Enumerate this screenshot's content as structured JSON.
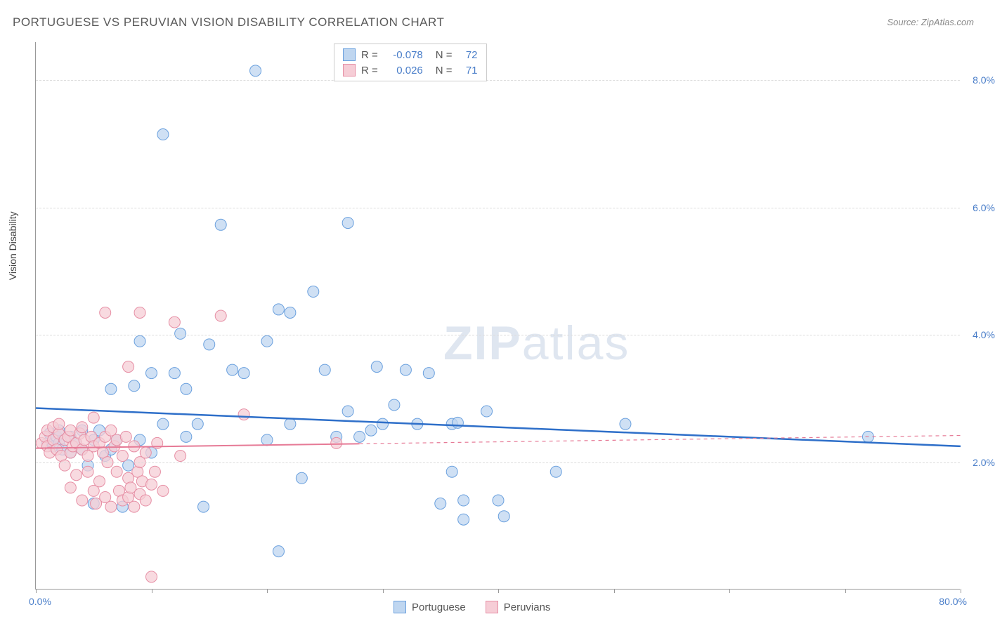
{
  "title": "PORTUGUESE VS PERUVIAN VISION DISABILITY CORRELATION CHART",
  "source": "Source: ZipAtlas.com",
  "y_axis_label": "Vision Disability",
  "watermark_zip": "ZIP",
  "watermark_atlas": "atlas",
  "chart": {
    "type": "scatter",
    "background_color": "#ffffff",
    "grid_color": "#dcdcdc",
    "axis_color": "#999999",
    "text_color": "#555555",
    "value_color": "#4a7ec9",
    "xlim": [
      0,
      80
    ],
    "ylim": [
      0,
      8.6
    ],
    "x_ticks": [
      0,
      10,
      20,
      30,
      40,
      50,
      60,
      70,
      80
    ],
    "x_labels": {
      "min": "0.0%",
      "max": "80.0%"
    },
    "y_grid": [
      {
        "value": 2.0,
        "label": "2.0%"
      },
      {
        "value": 4.0,
        "label": "4.0%"
      },
      {
        "value": 6.0,
        "label": "6.0%"
      },
      {
        "value": 8.0,
        "label": "8.0%"
      }
    ],
    "series": [
      {
        "name": "Portuguese",
        "R": "-0.078",
        "N": "72",
        "marker_fill": "#bfd6f0",
        "marker_stroke": "#6aa0de",
        "marker_radius": 8,
        "line_color": "#2e6fc9",
        "line_width": 2.5,
        "regression": {
          "x1": 0,
          "y1": 2.85,
          "x2": 80,
          "y2": 2.25,
          "solid_until": 80
        },
        "points": [
          [
            1,
            2.3
          ],
          [
            1.2,
            2.45
          ],
          [
            1.5,
            2.25
          ],
          [
            1.8,
            2.4
          ],
          [
            2,
            2.3
          ],
          [
            2,
            2.5
          ],
          [
            2.3,
            2.2
          ],
          [
            3,
            2.15
          ],
          [
            3,
            2.4
          ],
          [
            3.5,
            2.3
          ],
          [
            4,
            2.2
          ],
          [
            4,
            2.5
          ],
          [
            4.5,
            1.95
          ],
          [
            5,
            2.35
          ],
          [
            5,
            1.35
          ],
          [
            5.5,
            2.5
          ],
          [
            6,
            2.1
          ],
          [
            6.5,
            3.15
          ],
          [
            6.5,
            2.2
          ],
          [
            7,
            2.35
          ],
          [
            7.5,
            1.3
          ],
          [
            8,
            1.95
          ],
          [
            8.5,
            3.2
          ],
          [
            9,
            3.9
          ],
          [
            9,
            2.35
          ],
          [
            10,
            3.4
          ],
          [
            10,
            2.15
          ],
          [
            11,
            7.15
          ],
          [
            11,
            2.6
          ],
          [
            12,
            3.4
          ],
          [
            12.5,
            4.02
          ],
          [
            13,
            3.15
          ],
          [
            13,
            2.4
          ],
          [
            14,
            2.6
          ],
          [
            14.5,
            1.3
          ],
          [
            15,
            3.85
          ],
          [
            16,
            5.73
          ],
          [
            17,
            3.45
          ],
          [
            18,
            3.4
          ],
          [
            19,
            8.15
          ],
          [
            20,
            3.9
          ],
          [
            20,
            2.35
          ],
          [
            21,
            4.4
          ],
          [
            21,
            0.6
          ],
          [
            22,
            4.35
          ],
          [
            22,
            2.6
          ],
          [
            23,
            1.75
          ],
          [
            24,
            4.68
          ],
          [
            25,
            3.45
          ],
          [
            26,
            2.4
          ],
          [
            27,
            2.8
          ],
          [
            27,
            5.76
          ],
          [
            28,
            2.4
          ],
          [
            29,
            2.5
          ],
          [
            29.5,
            3.5
          ],
          [
            30,
            2.6
          ],
          [
            31,
            2.9
          ],
          [
            32,
            3.45
          ],
          [
            33,
            2.6
          ],
          [
            34,
            3.4
          ],
          [
            35,
            1.35
          ],
          [
            36,
            2.6
          ],
          [
            36,
            1.85
          ],
          [
            36.5,
            2.62
          ],
          [
            37,
            1.1
          ],
          [
            37,
            1.4
          ],
          [
            39,
            2.8
          ],
          [
            40,
            1.4
          ],
          [
            40.5,
            1.15
          ],
          [
            45,
            1.85
          ],
          [
            51,
            2.6
          ],
          [
            72,
            2.4
          ]
        ]
      },
      {
        "name": "Peruvians",
        "R": "0.026",
        "N": "71",
        "marker_fill": "#f6cdd6",
        "marker_stroke": "#e68ea4",
        "marker_radius": 8,
        "line_color": "#e67a96",
        "line_width": 2,
        "regression": {
          "x1": 0,
          "y1": 2.22,
          "x2": 80,
          "y2": 2.42,
          "solid_until": 28
        },
        "points": [
          [
            0.5,
            2.3
          ],
          [
            0.8,
            2.4
          ],
          [
            1,
            2.25
          ],
          [
            1,
            2.5
          ],
          [
            1.2,
            2.15
          ],
          [
            1.5,
            2.35
          ],
          [
            1.5,
            2.55
          ],
          [
            1.8,
            2.2
          ],
          [
            2,
            2.45
          ],
          [
            2,
            2.6
          ],
          [
            2.2,
            2.1
          ],
          [
            2.5,
            2.35
          ],
          [
            2.5,
            1.95
          ],
          [
            2.8,
            2.4
          ],
          [
            3,
            2.15
          ],
          [
            3,
            2.5
          ],
          [
            3,
            1.6
          ],
          [
            3.2,
            2.25
          ],
          [
            3.5,
            2.3
          ],
          [
            3.5,
            1.8
          ],
          [
            3.8,
            2.45
          ],
          [
            4,
            2.2
          ],
          [
            4,
            2.55
          ],
          [
            4,
            1.4
          ],
          [
            4.2,
            2.35
          ],
          [
            4.5,
            2.1
          ],
          [
            4.5,
            1.85
          ],
          [
            4.8,
            2.4
          ],
          [
            5,
            2.25
          ],
          [
            5,
            1.55
          ],
          [
            5,
            2.7
          ],
          [
            5.2,
            1.35
          ],
          [
            5.5,
            2.3
          ],
          [
            5.5,
            1.7
          ],
          [
            5.8,
            2.15
          ],
          [
            6,
            2.4
          ],
          [
            6,
            1.45
          ],
          [
            6,
            4.35
          ],
          [
            6.2,
            2.0
          ],
          [
            6.5,
            2.5
          ],
          [
            6.5,
            1.3
          ],
          [
            6.8,
            2.25
          ],
          [
            7,
            1.85
          ],
          [
            7,
            2.35
          ],
          [
            7.2,
            1.55
          ],
          [
            7.5,
            2.1
          ],
          [
            7.5,
            1.4
          ],
          [
            7.8,
            2.4
          ],
          [
            8,
            1.45
          ],
          [
            8,
            1.75
          ],
          [
            8,
            3.5
          ],
          [
            8.2,
            1.6
          ],
          [
            8.5,
            2.25
          ],
          [
            8.5,
            1.3
          ],
          [
            8.8,
            1.85
          ],
          [
            9,
            2.0
          ],
          [
            9,
            1.5
          ],
          [
            9,
            4.35
          ],
          [
            9.2,
            1.7
          ],
          [
            9.5,
            2.15
          ],
          [
            9.5,
            1.4
          ],
          [
            10,
            1.65
          ],
          [
            10,
            0.2
          ],
          [
            10.3,
            1.85
          ],
          [
            10.5,
            2.3
          ],
          [
            11,
            1.55
          ],
          [
            12,
            4.2
          ],
          [
            12.5,
            2.1
          ],
          [
            16,
            4.3
          ],
          [
            18,
            2.75
          ],
          [
            26,
            2.3
          ]
        ]
      }
    ]
  },
  "legend_bottom": [
    {
      "label": "Portuguese",
      "fill": "#bfd6f0",
      "stroke": "#6aa0de"
    },
    {
      "label": "Peruvians",
      "fill": "#f6cdd6",
      "stroke": "#e68ea4"
    }
  ]
}
